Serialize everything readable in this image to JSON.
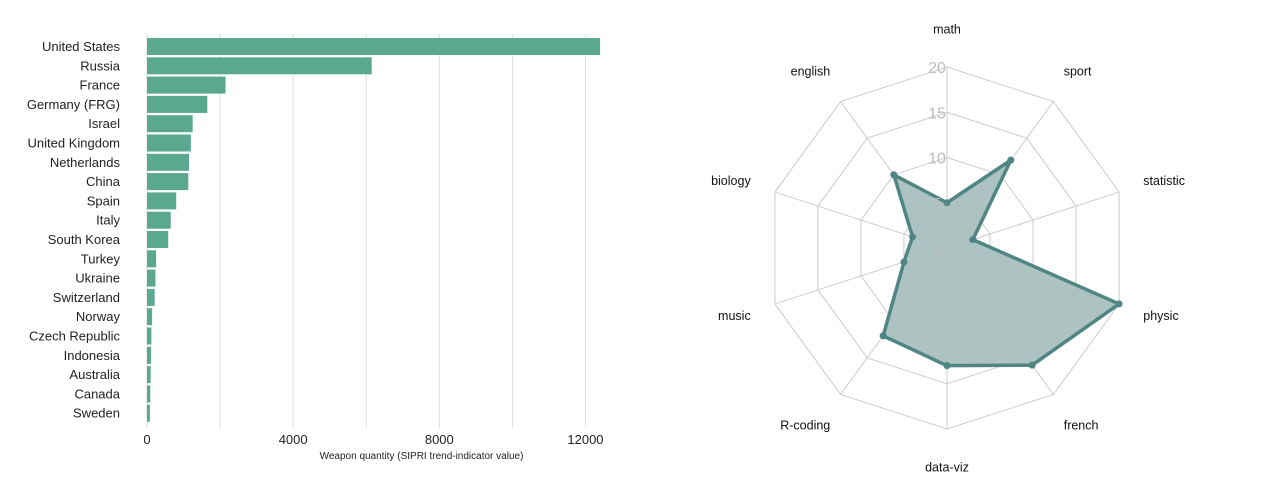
{
  "chart_data": [
    {
      "type": "bar",
      "orientation": "horizontal",
      "categories": [
        "United States",
        "Russia",
        "France",
        "Germany (FRG)",
        "Israel",
        "United Kingdom",
        "Netherlands",
        "China",
        "Spain",
        "Italy",
        "South Korea",
        "Turkey",
        "Ukraine",
        "Switzerland",
        "Norway",
        "Czech Republic",
        "Indonesia",
        "Australia",
        "Canada",
        "Sweden"
      ],
      "values": [
        12400,
        6150,
        2150,
        1650,
        1250,
        1200,
        1150,
        1130,
        800,
        650,
        580,
        250,
        230,
        210,
        140,
        120,
        110,
        100,
        90,
        80
      ],
      "xlabel": "Weapon quantity (SIPRI trend-indicator value)",
      "xticks": [
        0,
        4000,
        8000,
        12000
      ],
      "xlim": [
        0,
        13000
      ],
      "grid": "vertical",
      "color": "#5aa890"
    },
    {
      "type": "radar",
      "axes": [
        "math",
        "sport",
        "statistic",
        "physic",
        "french",
        "data-viz",
        "R-coding",
        "music",
        "biology",
        "english"
      ],
      "values": [
        5,
        12,
        3,
        20,
        16,
        13,
        12,
        5,
        4,
        10
      ],
      "rticks": [
        0,
        5,
        10,
        15,
        20
      ],
      "rlim": [
        0,
        20
      ],
      "color": "#4f8583",
      "fill": "#a9c0bf"
    }
  ]
}
